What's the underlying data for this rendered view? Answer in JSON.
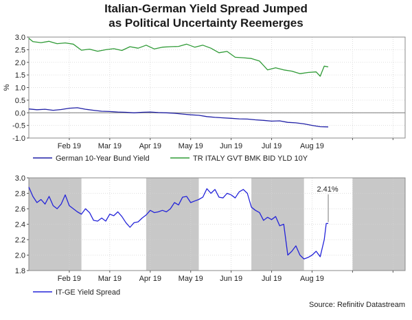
{
  "title_line1": "Italian-German Yield Spread Jumped",
  "title_line2": "as Political Uncertainty Reemerges",
  "source": "Source: Refinitiv Datastream",
  "colors": {
    "german": "#1f1fa6",
    "italy": "#2e9a35",
    "spread": "#2323d9",
    "shade": "#c8c8c8",
    "zero_line": "#909090"
  },
  "chart_data": [
    {
      "type": "line",
      "ylabel": "%",
      "ylim": [
        -1.0,
        3.0
      ],
      "yticks": [
        3.0,
        2.5,
        2.0,
        1.5,
        1.0,
        0.5,
        0.0,
        -0.5,
        -1.0
      ],
      "ytick_labels": [
        "3.0",
        "2.5",
        "2.0",
        "1.5",
        "1.0",
        "0.5",
        "0.0",
        "-0.5",
        "-1.0"
      ],
      "xlim": [
        0,
        9.3
      ],
      "month_labels": [
        "Feb 19",
        "Mar 19",
        "Apr 19",
        "May 19",
        "Jun 19",
        "Jul 19",
        "Aug 19"
      ],
      "month_label_pos": [
        1,
        2,
        3,
        4,
        5,
        6,
        7
      ],
      "series": [
        {
          "name": "German 10-Year Bund Yield",
          "x": [
            0,
            0.2,
            0.4,
            0.6,
            0.8,
            1.0,
            1.2,
            1.4,
            1.6,
            1.8,
            2.0,
            2.2,
            2.4,
            2.6,
            2.8,
            3.0,
            3.2,
            3.4,
            3.6,
            3.8,
            4.0,
            4.2,
            4.4,
            4.6,
            4.8,
            5.0,
            5.2,
            5.4,
            5.6,
            5.8,
            6.0,
            6.2,
            6.4,
            6.6,
            6.8,
            7.0,
            7.2,
            7.4
          ],
          "values": [
            0.15,
            0.12,
            0.14,
            0.1,
            0.13,
            0.18,
            0.2,
            0.14,
            0.1,
            0.06,
            0.05,
            0.03,
            0.02,
            0.0,
            0.02,
            0.03,
            0.01,
            0.0,
            -0.02,
            -0.05,
            -0.08,
            -0.1,
            -0.15,
            -0.18,
            -0.2,
            -0.22,
            -0.24,
            -0.25,
            -0.28,
            -0.3,
            -0.33,
            -0.32,
            -0.38,
            -0.4,
            -0.44,
            -0.5,
            -0.55,
            -0.56
          ]
        },
        {
          "name": "TR ITALY GVT BMK BID YLD 10Y",
          "x": [
            0,
            0.1,
            0.3,
            0.5,
            0.7,
            0.9,
            1.1,
            1.3,
            1.5,
            1.7,
            1.9,
            2.1,
            2.3,
            2.5,
            2.7,
            2.9,
            3.1,
            3.3,
            3.5,
            3.7,
            3.9,
            4.1,
            4.3,
            4.5,
            4.7,
            4.9,
            5.1,
            5.3,
            5.5,
            5.7,
            5.9,
            6.1,
            6.3,
            6.5,
            6.7,
            6.9,
            7.1,
            7.2,
            7.3,
            7.4
          ],
          "values": [
            2.95,
            2.82,
            2.78,
            2.83,
            2.74,
            2.77,
            2.72,
            2.48,
            2.52,
            2.44,
            2.5,
            2.54,
            2.47,
            2.62,
            2.56,
            2.68,
            2.53,
            2.6,
            2.62,
            2.63,
            2.72,
            2.6,
            2.68,
            2.56,
            2.38,
            2.43,
            2.2,
            2.18,
            2.15,
            2.05,
            1.7,
            1.78,
            1.7,
            1.65,
            1.55,
            1.6,
            1.62,
            1.45,
            1.85,
            1.82
          ]
        }
      ]
    },
    {
      "type": "line",
      "ylabel": "",
      "ylim": [
        1.8,
        3.0
      ],
      "yticks": [
        3.0,
        2.8,
        2.6,
        2.4,
        2.2,
        2.0,
        1.8
      ],
      "ytick_labels": [
        "3.0",
        "2.8",
        "2.6",
        "2.4",
        "2.2",
        "2.0",
        "1.8"
      ],
      "xlim": [
        0,
        9.3
      ],
      "month_labels": [
        "Feb 19",
        "Mar 19",
        "Apr 19",
        "May 19",
        "Jun 19",
        "Jul 19",
        "Aug 19"
      ],
      "month_label_pos": [
        1,
        2,
        3,
        4,
        5,
        6,
        7
      ],
      "shaded_ranges": [
        [
          0,
          1.3
        ],
        [
          2.9,
          4.2
        ],
        [
          5.5,
          6.8
        ],
        [
          8.0,
          9.3
        ]
      ],
      "annotation": {
        "text": "2.41%",
        "x": 7.4,
        "y": 2.41
      },
      "series": [
        {
          "name": "IT-GE Yield Spread",
          "x": [
            0,
            0.1,
            0.2,
            0.3,
            0.4,
            0.5,
            0.6,
            0.7,
            0.8,
            0.9,
            1.0,
            1.1,
            1.2,
            1.3,
            1.4,
            1.5,
            1.6,
            1.7,
            1.8,
            1.9,
            2.0,
            2.1,
            2.2,
            2.3,
            2.4,
            2.5,
            2.6,
            2.7,
            2.8,
            2.9,
            3.0,
            3.1,
            3.2,
            3.3,
            3.4,
            3.5,
            3.6,
            3.7,
            3.8,
            3.9,
            4.0,
            4.1,
            4.2,
            4.3,
            4.4,
            4.5,
            4.6,
            4.7,
            4.8,
            4.9,
            5.0,
            5.1,
            5.2,
            5.3,
            5.4,
            5.5,
            5.6,
            5.7,
            5.8,
            5.9,
            6.0,
            6.1,
            6.2,
            6.3,
            6.4,
            6.5,
            6.6,
            6.7,
            6.8,
            6.9,
            7.0,
            7.1,
            7.2,
            7.3,
            7.35,
            7.4
          ],
          "values": [
            2.88,
            2.76,
            2.68,
            2.72,
            2.66,
            2.76,
            2.64,
            2.6,
            2.66,
            2.78,
            2.64,
            2.6,
            2.56,
            2.53,
            2.6,
            2.55,
            2.45,
            2.44,
            2.48,
            2.44,
            2.53,
            2.51,
            2.56,
            2.5,
            2.42,
            2.36,
            2.42,
            2.43,
            2.48,
            2.52,
            2.58,
            2.55,
            2.56,
            2.58,
            2.56,
            2.6,
            2.68,
            2.65,
            2.75,
            2.76,
            2.68,
            2.7,
            2.72,
            2.75,
            2.86,
            2.8,
            2.85,
            2.75,
            2.74,
            2.8,
            2.78,
            2.74,
            2.82,
            2.85,
            2.8,
            2.62,
            2.58,
            2.55,
            2.45,
            2.49,
            2.46,
            2.5,
            2.38,
            2.4,
            2.0,
            2.05,
            2.12,
            2.0,
            1.95,
            1.97,
            2.0,
            2.05,
            1.98,
            2.2,
            2.41,
            2.41
          ]
        }
      ]
    }
  ]
}
